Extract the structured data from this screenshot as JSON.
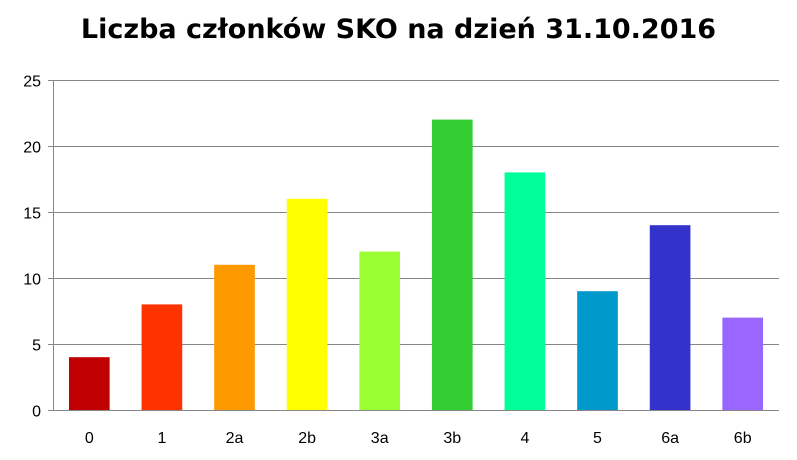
{
  "chart_data": {
    "type": "bar",
    "title": "Liczba członków SKO na dzień 31.10.2016",
    "xlabel": "",
    "ylabel": "",
    "categories": [
      "0",
      "1",
      "2a",
      "2b",
      "3a",
      "3b",
      "4",
      "5",
      "6a",
      "6b"
    ],
    "values": [
      4,
      8,
      11,
      16,
      12,
      22,
      18,
      9,
      14,
      7
    ],
    "colors": [
      "#C00000",
      "#FF3300",
      "#FF9900",
      "#FFFF00",
      "#99FF33",
      "#33CC33",
      "#00FF99",
      "#0099CC",
      "#3333CC",
      "#9966FF"
    ],
    "ylim": [
      0,
      25
    ],
    "yticks": [
      0,
      5,
      10,
      15,
      20,
      25
    ],
    "grid": true,
    "legend": "none",
    "gridline_color": "#868686"
  }
}
